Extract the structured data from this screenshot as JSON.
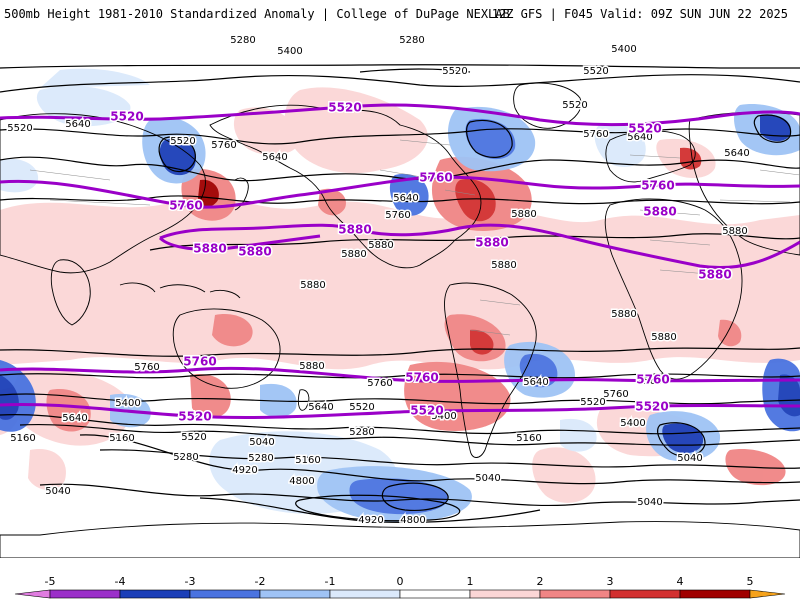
{
  "header": {
    "left": "500mb Height 1981-2010 Standardized Anomaly | College of DuPage NEXLAB",
    "right": "12Z GFS | F045 Valid: 09Z SUN JUN 22 2025"
  },
  "colors": {
    "ocean": "#ffffff",
    "contour": "#000000",
    "highlight_contour": "#9a00c8",
    "coast": "#000000",
    "border": "#8c8c8c"
  },
  "colorbar": {
    "tick_labels": [
      "-5",
      "-4",
      "-3",
      "-2",
      "-1",
      "0",
      "1",
      "2",
      "3",
      "4",
      "5"
    ],
    "segments": [
      {
        "from": -5.5,
        "to": -5,
        "color": "#e07ce0"
      },
      {
        "from": -5,
        "to": -4,
        "color": "#9b2fc9"
      },
      {
        "from": -4,
        "to": -3,
        "color": "#1b3fb8"
      },
      {
        "from": -3,
        "to": -2,
        "color": "#4a73e0"
      },
      {
        "from": -2,
        "to": -1,
        "color": "#9fc3f5"
      },
      {
        "from": -1,
        "to": 0,
        "color": "#dbe9fb"
      },
      {
        "from": 0,
        "to": 1,
        "color": "#ffffff"
      },
      {
        "from": 1,
        "to": 2,
        "color": "#fbd6d6"
      },
      {
        "from": 2,
        "to": 3,
        "color": "#f08585"
      },
      {
        "from": 3,
        "to": 4,
        "color": "#d23030"
      },
      {
        "from": 4,
        "to": 5,
        "color": "#a00000"
      },
      {
        "from": 5,
        "to": 5.5,
        "color": "#f5a21b"
      }
    ]
  },
  "contour_labels": [
    {
      "text": "5280",
      "kind": "normal"
    },
    {
      "text": "5280",
      "kind": "normal"
    },
    {
      "text": "5400",
      "kind": "normal"
    },
    {
      "text": "5400",
      "kind": "normal"
    },
    {
      "text": "5520",
      "kind": "normal"
    },
    {
      "text": "5520",
      "kind": "normal"
    },
    {
      "text": "5520",
      "kind": "normal"
    },
    {
      "text": "5520",
      "kind": "normal"
    },
    {
      "text": "5520",
      "kind": "normal"
    },
    {
      "text": "5640",
      "kind": "normal"
    },
    {
      "text": "5640",
      "kind": "normal"
    },
    {
      "text": "5640",
      "kind": "normal"
    },
    {
      "text": "5640",
      "kind": "normal"
    },
    {
      "text": "5760",
      "kind": "normal"
    },
    {
      "text": "5760",
      "kind": "normal"
    },
    {
      "text": "5760",
      "kind": "normal"
    },
    {
      "text": "5880",
      "kind": "normal"
    },
    {
      "text": "5880",
      "kind": "normal"
    },
    {
      "text": "5880",
      "kind": "normal"
    },
    {
      "text": "5880",
      "kind": "normal"
    },
    {
      "text": "5880",
      "kind": "normal"
    },
    {
      "text": "5880",
      "kind": "normal"
    },
    {
      "text": "5880",
      "kind": "normal"
    },
    {
      "text": "5880",
      "kind": "normal"
    },
    {
      "text": "5880",
      "kind": "normal"
    },
    {
      "text": "5880",
      "kind": "normal"
    },
    {
      "text": "5760",
      "kind": "normal"
    },
    {
      "text": "5760",
      "kind": "normal"
    },
    {
      "text": "5640",
      "kind": "normal"
    },
    {
      "text": "5640",
      "kind": "normal"
    },
    {
      "text": "5640",
      "kind": "normal"
    },
    {
      "text": "5640",
      "kind": "normal"
    },
    {
      "text": "5760",
      "kind": "normal"
    },
    {
      "text": "5520",
      "kind": "normal"
    },
    {
      "text": "5520",
      "kind": "normal"
    },
    {
      "text": "5520",
      "kind": "normal"
    },
    {
      "text": "5400",
      "kind": "normal"
    },
    {
      "text": "5400",
      "kind": "normal"
    },
    {
      "text": "5400",
      "kind": "normal"
    },
    {
      "text": "5280",
      "kind": "normal"
    },
    {
      "text": "5280",
      "kind": "normal"
    },
    {
      "text": "5280",
      "kind": "normal"
    },
    {
      "text": "5160",
      "kind": "normal"
    },
    {
      "text": "5160",
      "kind": "normal"
    },
    {
      "text": "5160",
      "kind": "normal"
    },
    {
      "text": "5160",
      "kind": "normal"
    },
    {
      "text": "5040",
      "kind": "normal"
    },
    {
      "text": "5040",
      "kind": "normal"
    },
    {
      "text": "5040",
      "kind": "normal"
    },
    {
      "text": "5040",
      "kind": "normal"
    },
    {
      "text": "5040",
      "kind": "normal"
    },
    {
      "text": "4920",
      "kind": "normal"
    },
    {
      "text": "4920",
      "kind": "normal"
    },
    {
      "text": "4800",
      "kind": "normal"
    },
    {
      "text": "4800",
      "kind": "normal"
    },
    {
      "text": "5640",
      "kind": "normal"
    },
    {
      "text": "5520",
      "kind": "highlight"
    },
    {
      "text": "5520",
      "kind": "highlight"
    },
    {
      "text": "5520",
      "kind": "highlight"
    },
    {
      "text": "5760",
      "kind": "highlight"
    },
    {
      "text": "5760",
      "kind": "highlight"
    },
    {
      "text": "5760",
      "kind": "highlight"
    },
    {
      "text": "5880",
      "kind": "highlight"
    },
    {
      "text": "5880",
      "kind": "highlight"
    },
    {
      "text": "5880",
      "kind": "highlight"
    },
    {
      "text": "5880",
      "kind": "highlight"
    },
    {
      "text": "5880",
      "kind": "highlight"
    },
    {
      "text": "5880",
      "kind": "highlight"
    },
    {
      "text": "5760",
      "kind": "highlight"
    },
    {
      "text": "5760",
      "kind": "highlight"
    },
    {
      "text": "5760",
      "kind": "highlight"
    },
    {
      "text": "5520",
      "kind": "highlight"
    },
    {
      "text": "5520",
      "kind": "highlight"
    },
    {
      "text": "5520",
      "kind": "highlight"
    }
  ]
}
